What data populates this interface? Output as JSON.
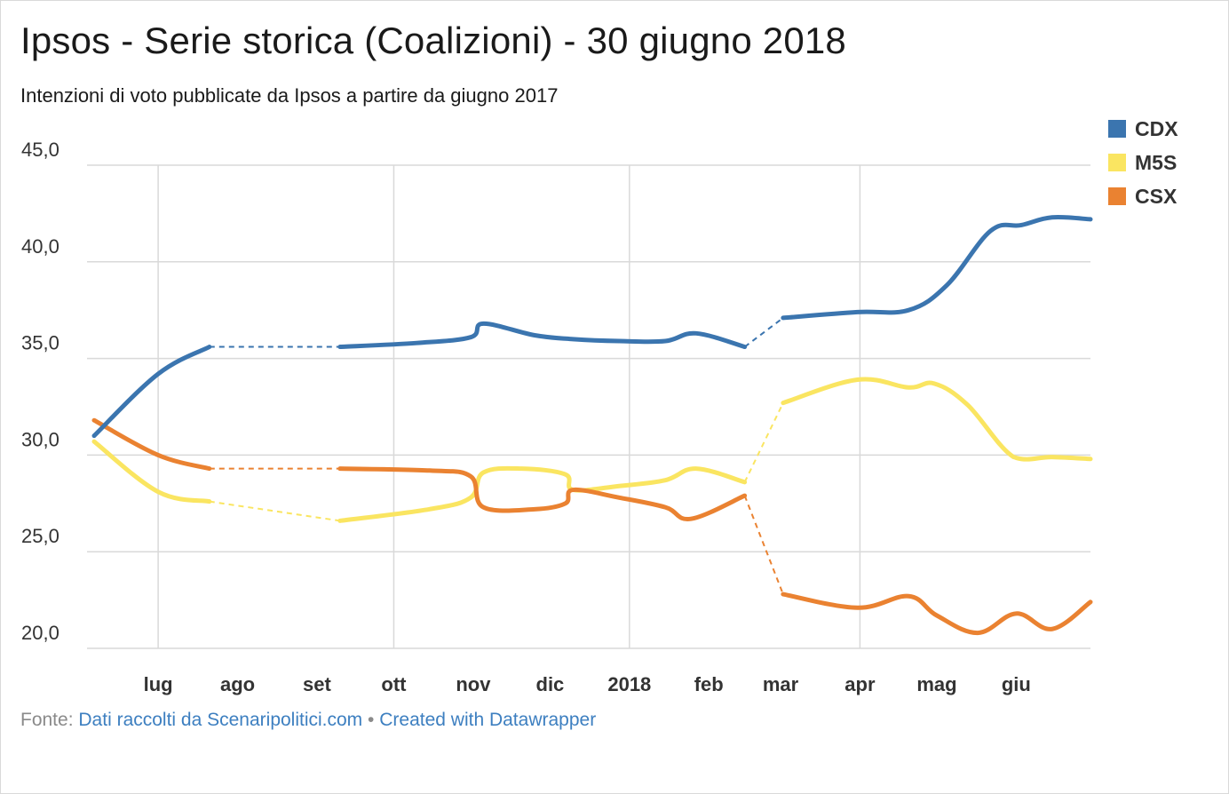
{
  "title": "Ipsos - Serie storica (Coalizioni) - 30 giugno 2018",
  "subtitle": "Intenzioni di voto pubblicate da Ipsos a partire da giugno 2017",
  "footer": {
    "prefix": "Fonte:",
    "source_link": "Dati raccolti da Scenaripolitici.com",
    "separator": "•",
    "created_link": "Created with Datawrapper"
  },
  "colors": {
    "CDX": "#3b75af",
    "M5S": "#fae561",
    "CSX": "#ea8231",
    "grid": "#d9d9d9",
    "axis_text": "#333333"
  },
  "chart_data": {
    "type": "line",
    "xlim": [
      "2017-06-06",
      "2018-06-30"
    ],
    "ylim": [
      20,
      45
    ],
    "y_ticks": [
      {
        "value": 45,
        "label": "45,0"
      },
      {
        "value": 40,
        "label": "40,0"
      },
      {
        "value": 35,
        "label": "35,0"
      },
      {
        "value": 30,
        "label": "30,0"
      },
      {
        "value": 25,
        "label": "25,0"
      },
      {
        "value": 20,
        "label": "20,0"
      }
    ],
    "x_ticks": [
      {
        "date": "2017-07-01",
        "label": "lug"
      },
      {
        "date": "2017-08-01",
        "label": "ago"
      },
      {
        "date": "2017-09-01",
        "label": "set"
      },
      {
        "date": "2017-10-01",
        "label": "ott"
      },
      {
        "date": "2017-11-01",
        "label": "nov"
      },
      {
        "date": "2017-12-01",
        "label": "dic"
      },
      {
        "date": "2018-01-01",
        "label": "2018"
      },
      {
        "date": "2018-02-01",
        "label": "feb"
      },
      {
        "date": "2018-03-01",
        "label": "mar"
      },
      {
        "date": "2018-04-01",
        "label": "apr"
      },
      {
        "date": "2018-05-01",
        "label": "mag"
      },
      {
        "date": "2018-06-01",
        "label": "giu"
      }
    ],
    "grid": true,
    "legend_position": "top-right",
    "series": [
      {
        "name": "CDX",
        "color": "#3b75af",
        "points": [
          {
            "date": "2017-06-06",
            "value": 31.0
          },
          {
            "date": "2017-07-01",
            "value": 34.2
          },
          {
            "date": "2017-07-21",
            "value": 35.6
          },
          {
            "date": "2017-09-10",
            "value": 35.6
          },
          {
            "date": "2017-10-10",
            "value": 35.8
          },
          {
            "date": "2017-10-31",
            "value": 36.1
          },
          {
            "date": "2017-11-05",
            "value": 36.8
          },
          {
            "date": "2017-11-25",
            "value": 36.2
          },
          {
            "date": "2017-12-10",
            "value": 36.0
          },
          {
            "date": "2017-12-28",
            "value": 35.9
          },
          {
            "date": "2018-01-15",
            "value": 35.9
          },
          {
            "date": "2018-01-27",
            "value": 36.3
          },
          {
            "date": "2018-02-15",
            "value": 35.6
          },
          {
            "date": "2018-03-02",
            "value": 37.1
          },
          {
            "date": "2018-03-31",
            "value": 37.4
          },
          {
            "date": "2018-04-20",
            "value": 37.5
          },
          {
            "date": "2018-05-05",
            "value": 38.8
          },
          {
            "date": "2018-05-22",
            "value": 41.6
          },
          {
            "date": "2018-06-03",
            "value": 41.9
          },
          {
            "date": "2018-06-15",
            "value": 42.3
          },
          {
            "date": "2018-06-30",
            "value": 42.2
          }
        ],
        "gaps": [
          [
            "2017-07-21",
            "2017-09-10"
          ],
          [
            "2018-02-15",
            "2018-03-02"
          ]
        ]
      },
      {
        "name": "M5S",
        "color": "#fae561",
        "points": [
          {
            "date": "2017-06-06",
            "value": 30.7
          },
          {
            "date": "2017-07-01",
            "value": 28.1
          },
          {
            "date": "2017-07-21",
            "value": 27.6
          },
          {
            "date": "2017-09-10",
            "value": 26.6
          },
          {
            "date": "2017-10-15",
            "value": 27.2
          },
          {
            "date": "2017-10-31",
            "value": 27.8
          },
          {
            "date": "2017-11-05",
            "value": 29.1
          },
          {
            "date": "2017-11-20",
            "value": 29.3
          },
          {
            "date": "2017-12-07",
            "value": 29.0
          },
          {
            "date": "2017-12-10",
            "value": 28.2
          },
          {
            "date": "2017-12-28",
            "value": 28.4
          },
          {
            "date": "2018-01-15",
            "value": 28.7
          },
          {
            "date": "2018-01-27",
            "value": 29.3
          },
          {
            "date": "2018-02-15",
            "value": 28.6
          },
          {
            "date": "2018-03-02",
            "value": 32.7
          },
          {
            "date": "2018-03-31",
            "value": 33.9
          },
          {
            "date": "2018-04-20",
            "value": 33.5
          },
          {
            "date": "2018-04-30",
            "value": 33.7
          },
          {
            "date": "2018-05-13",
            "value": 32.6
          },
          {
            "date": "2018-05-31",
            "value": 29.9
          },
          {
            "date": "2018-06-15",
            "value": 29.9
          },
          {
            "date": "2018-06-30",
            "value": 29.8
          }
        ],
        "gaps": [
          [
            "2017-07-21",
            "2017-09-10"
          ],
          [
            "2018-02-15",
            "2018-03-02"
          ]
        ]
      },
      {
        "name": "CSX",
        "color": "#ea8231",
        "points": [
          {
            "date": "2017-06-06",
            "value": 31.8
          },
          {
            "date": "2017-07-01",
            "value": 30.0
          },
          {
            "date": "2017-07-21",
            "value": 29.3
          },
          {
            "date": "2017-09-10",
            "value": 29.3
          },
          {
            "date": "2017-10-15",
            "value": 29.2
          },
          {
            "date": "2017-10-31",
            "value": 28.9
          },
          {
            "date": "2017-11-05",
            "value": 27.3
          },
          {
            "date": "2017-11-25",
            "value": 27.2
          },
          {
            "date": "2017-12-07",
            "value": 27.5
          },
          {
            "date": "2017-12-10",
            "value": 28.2
          },
          {
            "date": "2017-12-28",
            "value": 27.8
          },
          {
            "date": "2018-01-15",
            "value": 27.3
          },
          {
            "date": "2018-01-25",
            "value": 26.7
          },
          {
            "date": "2018-02-15",
            "value": 27.9
          },
          {
            "date": "2018-03-02",
            "value": 22.8
          },
          {
            "date": "2018-03-31",
            "value": 22.1
          },
          {
            "date": "2018-04-20",
            "value": 22.7
          },
          {
            "date": "2018-05-01",
            "value": 21.7
          },
          {
            "date": "2018-05-17",
            "value": 20.8
          },
          {
            "date": "2018-06-01",
            "value": 21.8
          },
          {
            "date": "2018-06-15",
            "value": 21.0
          },
          {
            "date": "2018-06-30",
            "value": 22.4
          }
        ],
        "gaps": [
          [
            "2017-07-21",
            "2017-09-10"
          ],
          [
            "2018-02-15",
            "2018-03-02"
          ]
        ]
      }
    ]
  }
}
